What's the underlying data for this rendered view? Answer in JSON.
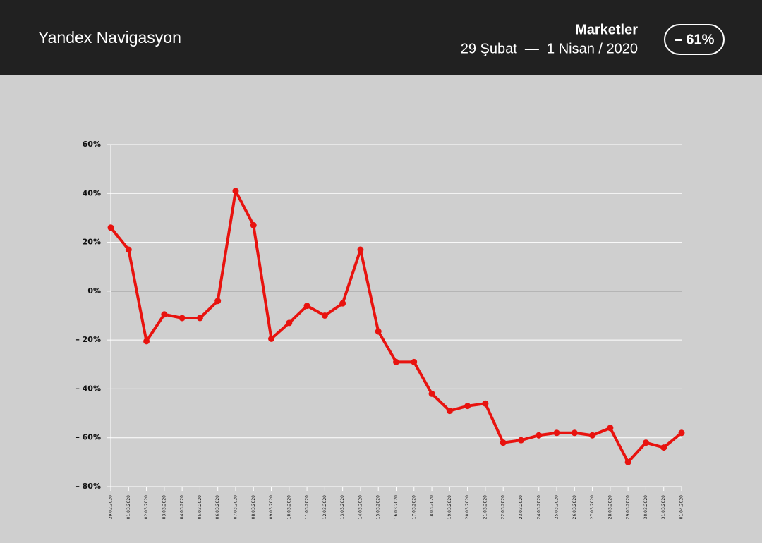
{
  "header": {
    "brand": "Yandex Navigasyon",
    "change_badge": "– 61%"
  },
  "chart_data": {
    "type": "line",
    "title": "Marketler",
    "subtitle": "29 Şubat  —  1 Nisan / 2020",
    "categories": [
      "29.02.2020",
      "01.03.2020",
      "02.03.2020",
      "03.03.2020",
      "04.03.2020",
      "05.03.2020",
      "06.03.2020",
      "07.03.2020",
      "08.03.2020",
      "09.03.2020",
      "10.03.2020",
      "11.03.2020",
      "12.03.2020",
      "13.03.2020",
      "14.03.2020",
      "15.03.2020",
      "16.03.2020",
      "17.03.2020",
      "18.03.2020",
      "19.03.2020",
      "20.03.2020",
      "21.03.2020",
      "22.03.2020",
      "23.03.2020",
      "24.03.2020",
      "25.03.2020",
      "26.03.2020",
      "27.03.2020",
      "28.03.2020",
      "29.03.2020",
      "30.03.2020",
      "31.03.2020",
      "01.04.2020"
    ],
    "values": [
      26,
      17,
      -20.5,
      -9.5,
      -11,
      -11,
      -4,
      41,
      27,
      -19.5,
      -13,
      -6,
      -10,
      -5,
      17,
      -16.5,
      -29,
      -29,
      -42,
      -49,
      -47,
      -46,
      -62,
      -61,
      -59,
      -58,
      -58,
      -59,
      -56,
      -70,
      -62,
      -64,
      -58
    ],
    "color": "#e8130f",
    "ylim": [
      -80,
      60
    ],
    "yticks": [
      {
        "value": -80,
        "label": "– 80%"
      },
      {
        "value": -60,
        "label": "– 60%"
      },
      {
        "value": -40,
        "label": "– 40%"
      },
      {
        "value": -20,
        "label": "– 20%"
      },
      {
        "value": 0,
        "label": "0%"
      },
      {
        "value": 20,
        "label": "20%"
      },
      {
        "value": 40,
        "label": "40%"
      },
      {
        "value": 60,
        "label": "60%"
      }
    ],
    "grid": true
  }
}
